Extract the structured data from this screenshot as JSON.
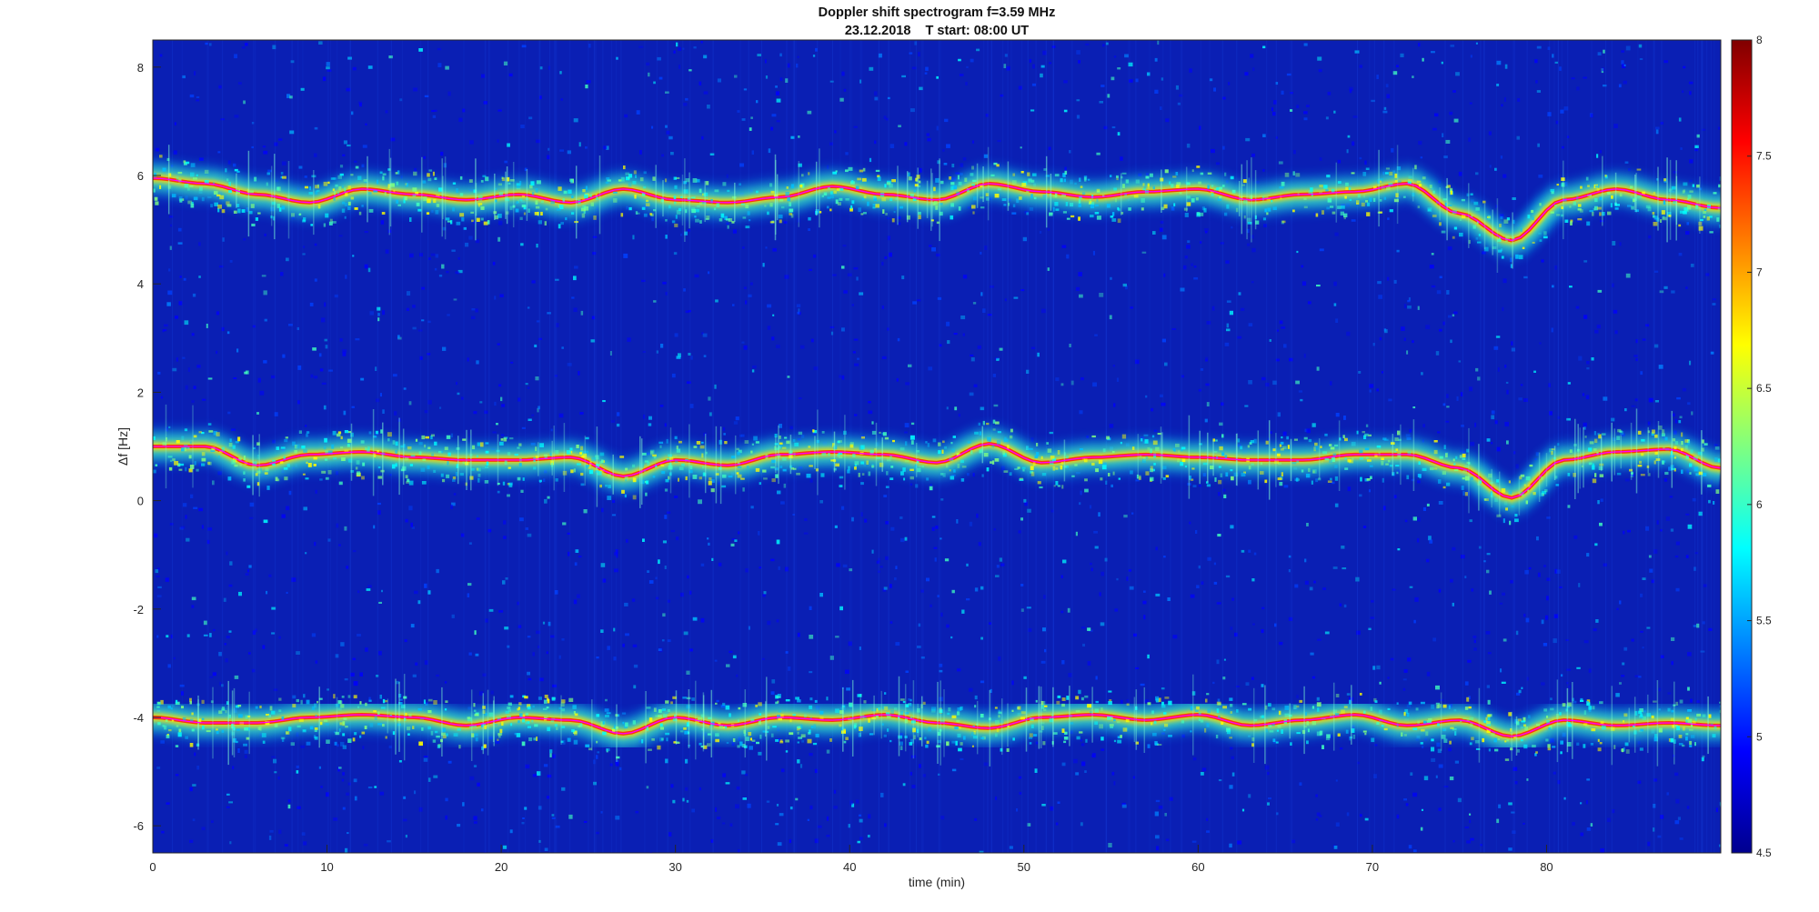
{
  "chart_data": {
    "type": "heatmap",
    "title": "Doppler shift spectrogram f=3.59 MHz",
    "subtitle": "23.12.2018    T start: 08:00 UT",
    "xlabel": "time (min)",
    "ylabel": "Δf [Hz]",
    "xlim": [
      0,
      90
    ],
    "ylim": [
      -6.5,
      8.5
    ],
    "x_ticks": [
      0,
      10,
      20,
      30,
      40,
      50,
      60,
      70,
      80
    ],
    "y_ticks": [
      -6,
      -4,
      -2,
      0,
      2,
      4,
      6,
      8
    ],
    "colorbar": {
      "colormap": "jet",
      "clim": [
        4.5,
        8
      ],
      "ticks": [
        "4.5",
        "5",
        "5.5",
        "6",
        "6.5",
        "7",
        "7.5",
        "8"
      ]
    },
    "background_color": "#0a1fb4",
    "traces": [
      {
        "name": "",
        "color": "#ff00ff",
        "x": [
          0,
          3,
          6,
          9,
          12,
          15,
          18,
          21,
          24,
          27,
          30,
          33,
          36,
          39,
          42,
          45,
          48,
          51,
          54,
          57,
          60,
          63,
          66,
          69,
          72,
          75,
          78,
          81,
          84,
          87,
          90
        ],
        "y": [
          5.95,
          5.85,
          5.65,
          5.5,
          5.75,
          5.65,
          5.55,
          5.65,
          5.5,
          5.75,
          5.55,
          5.5,
          5.6,
          5.8,
          5.65,
          5.55,
          5.85,
          5.7,
          5.6,
          5.7,
          5.75,
          5.55,
          5.65,
          5.7,
          5.85,
          5.3,
          4.8,
          5.55,
          5.75,
          5.55,
          5.4
        ]
      },
      {
        "name": "",
        "color": "#ff00ff",
        "x": [
          0,
          3,
          6,
          9,
          12,
          15,
          18,
          21,
          24,
          27,
          30,
          33,
          36,
          39,
          42,
          45,
          48,
          51,
          54,
          57,
          60,
          63,
          66,
          69,
          72,
          75,
          78,
          81,
          84,
          87,
          90
        ],
        "y": [
          1.0,
          1.0,
          0.65,
          0.85,
          0.9,
          0.8,
          0.75,
          0.75,
          0.8,
          0.45,
          0.75,
          0.65,
          0.85,
          0.9,
          0.85,
          0.7,
          1.05,
          0.7,
          0.8,
          0.85,
          0.8,
          0.75,
          0.75,
          0.85,
          0.85,
          0.6,
          0.05,
          0.75,
          0.9,
          0.95,
          0.6
        ]
      },
      {
        "name": "",
        "color": "#ff00ff",
        "x": [
          0,
          3,
          6,
          9,
          12,
          15,
          18,
          21,
          24,
          27,
          30,
          33,
          36,
          39,
          42,
          45,
          48,
          51,
          54,
          57,
          60,
          63,
          66,
          69,
          72,
          75,
          78,
          81,
          84,
          87,
          90
        ],
        "y": [
          -4.0,
          -4.1,
          -4.1,
          -4.0,
          -3.95,
          -4.0,
          -4.15,
          -4.0,
          -4.05,
          -4.3,
          -4.0,
          -4.15,
          -4.0,
          -4.05,
          -3.95,
          -4.1,
          -4.2,
          -4.0,
          -3.95,
          -4.05,
          -3.95,
          -4.15,
          -4.05,
          -3.95,
          -4.15,
          -4.05,
          -4.35,
          -4.05,
          -4.15,
          -4.1,
          -4.15
        ]
      }
    ]
  }
}
